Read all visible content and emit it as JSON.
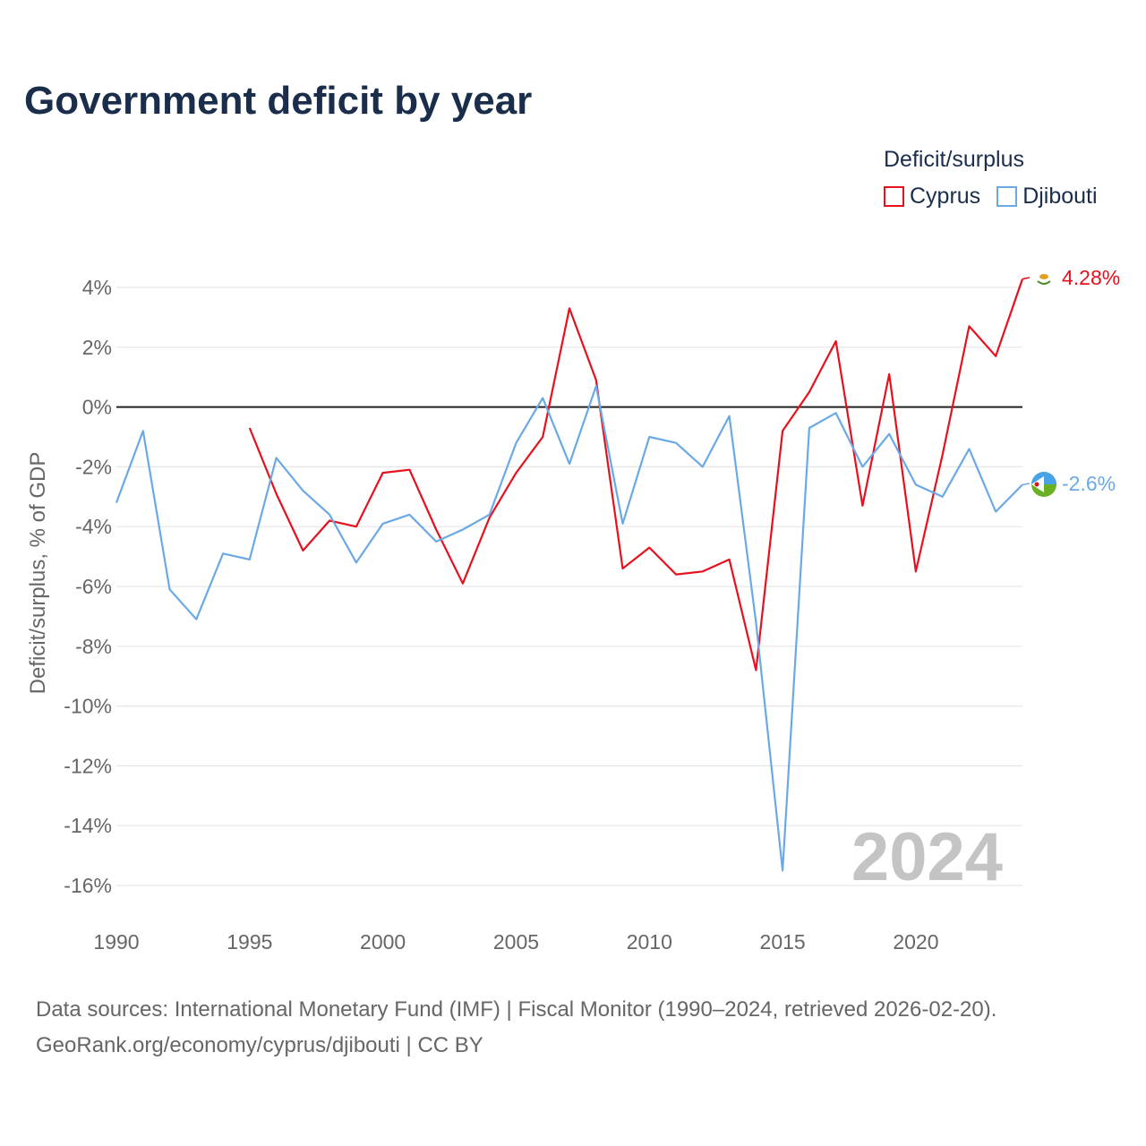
{
  "title": "Government deficit by year",
  "legend": {
    "title": "Deficit/surplus",
    "items": [
      {
        "label": "Cyprus",
        "color": "#e8101c"
      },
      {
        "label": "Djibouti",
        "color": "#6aa9e6"
      }
    ]
  },
  "watermark_year": "2024",
  "source_lines": [
    "Data sources: International Monetary Fund (IMF) | Fiscal Monitor (1990–2024, retrieved 2026-02-20).",
    "GeoRank.org/economy/cyprus/djibouti | CC BY"
  ],
  "chart_data": {
    "type": "line",
    "title": "Government deficit by year",
    "xlabel": "",
    "ylabel": "Deficit/surplus, % of GDP",
    "xlim": [
      1990,
      2024
    ],
    "ylim": [
      -17,
      5
    ],
    "x_ticks": [
      "1990",
      "1995",
      "2000",
      "2005",
      "2010",
      "2015",
      "2020"
    ],
    "y_ticks": [
      "4%",
      "2%",
      "0%",
      "-2%",
      "-4%",
      "-6%",
      "-8%",
      "-10%",
      "-12%",
      "-14%",
      "-16%"
    ],
    "y_tick_values": [
      4,
      2,
      0,
      -2,
      -4,
      -6,
      -8,
      -10,
      -12,
      -14,
      -16
    ],
    "zero_line": true,
    "grid": true,
    "series": [
      {
        "name": "Cyprus",
        "color": "#e8101c",
        "end_label": "4.28%",
        "x": [
          1995,
          1996,
          1997,
          1998,
          1999,
          2000,
          2001,
          2002,
          2003,
          2004,
          2005,
          2006,
          2007,
          2008,
          2009,
          2010,
          2011,
          2012,
          2013,
          2014,
          2015,
          2016,
          2017,
          2018,
          2019,
          2020,
          2021,
          2022,
          2023,
          2024
        ],
        "values": [
          -0.7,
          -2.9,
          -4.8,
          -3.8,
          -4.0,
          -2.2,
          -2.1,
          -4.1,
          -5.9,
          -3.7,
          -2.2,
          -1.0,
          3.3,
          0.9,
          -5.4,
          -4.7,
          -5.6,
          -5.5,
          -5.1,
          -8.8,
          -0.8,
          0.5,
          2.2,
          -3.3,
          1.1,
          -5.5,
          -1.6,
          2.7,
          1.7,
          4.28
        ]
      },
      {
        "name": "Djibouti",
        "color": "#6aa9e6",
        "end_label": "-2.6%",
        "x": [
          1990,
          1991,
          1992,
          1993,
          1994,
          1995,
          1996,
          1997,
          1998,
          1999,
          2000,
          2001,
          2002,
          2003,
          2004,
          2005,
          2006,
          2007,
          2008,
          2009,
          2010,
          2011,
          2012,
          2013,
          2014,
          2015,
          2016,
          2017,
          2018,
          2019,
          2020,
          2021,
          2022,
          2023,
          2024
        ],
        "values": [
          -3.2,
          -0.8,
          -6.1,
          -7.1,
          -4.9,
          -5.1,
          -1.7,
          -2.8,
          -3.6,
          -5.2,
          -3.9,
          -3.6,
          -4.5,
          -4.1,
          -3.6,
          -1.2,
          0.3,
          -1.9,
          0.7,
          -3.9,
          -1.0,
          -1.2,
          -2.0,
          -0.3,
          -7.2,
          -15.5,
          -0.7,
          -0.2,
          -2.0,
          -0.9,
          -2.6,
          -3.0,
          -1.4,
          -3.5,
          -2.6
        ]
      }
    ]
  }
}
